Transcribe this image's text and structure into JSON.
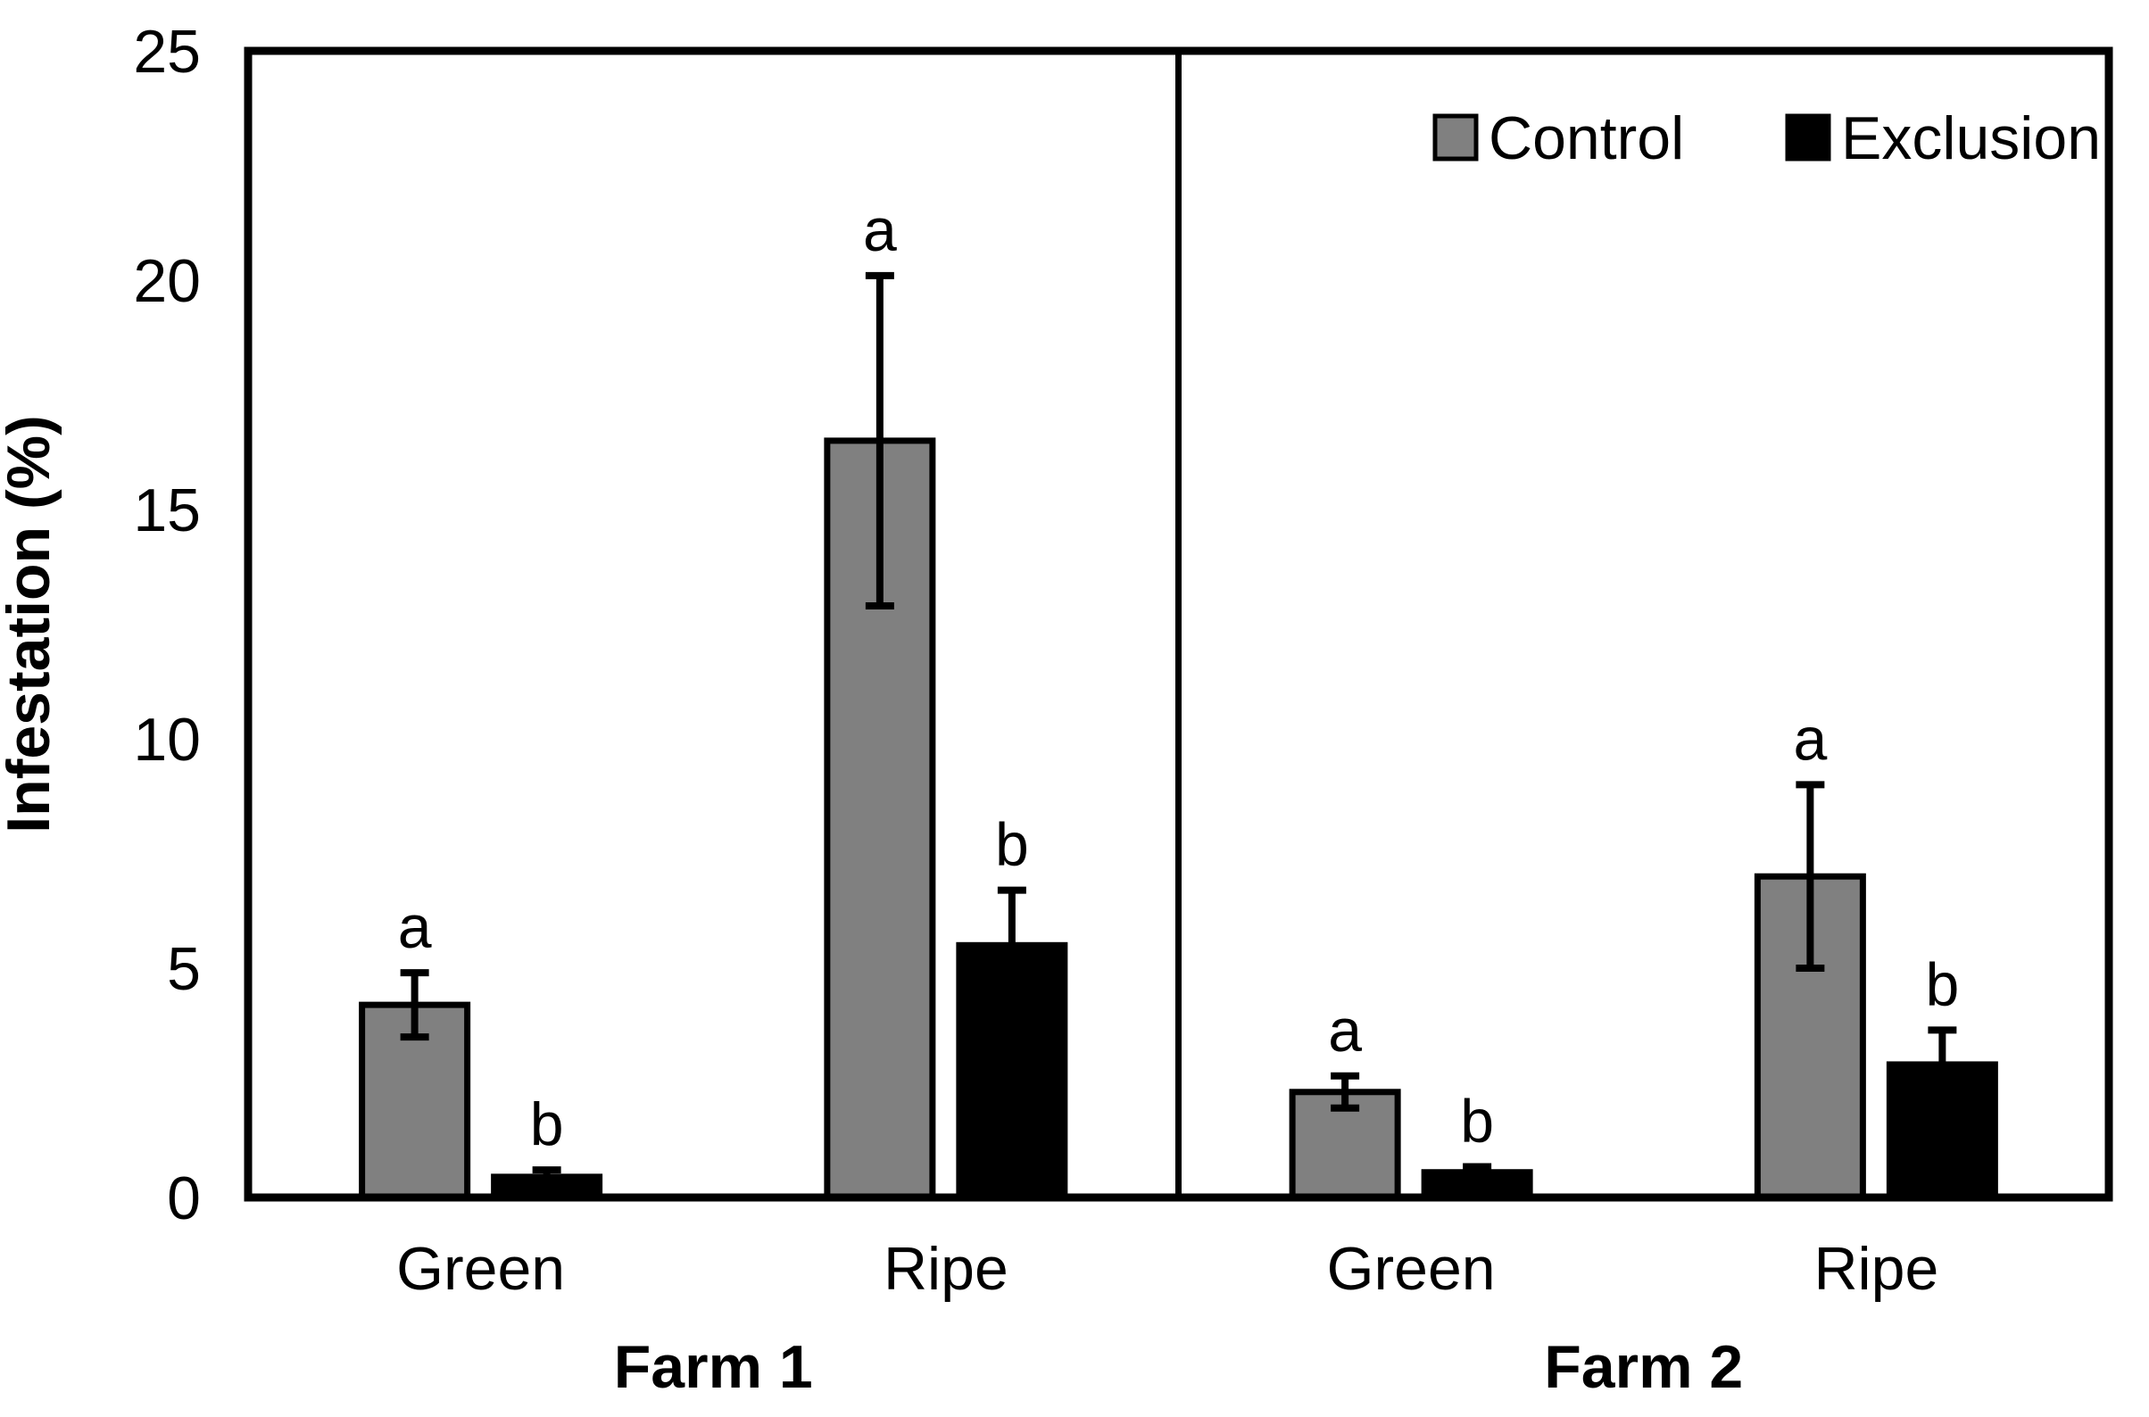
{
  "chart_data": {
    "type": "bar",
    "title": "",
    "xlabel": "",
    "ylabel": "Infestation (%)",
    "ylim": [
      0,
      25
    ],
    "yticks": [
      0,
      5,
      10,
      15,
      20,
      25
    ],
    "grid": false,
    "legend_position": "top-right",
    "colors": {
      "control": "#808080",
      "exclusion": "#000000",
      "axis": "#000000",
      "background": "#ffffff"
    },
    "series": [
      {
        "name": "Control",
        "color": "#808080"
      },
      {
        "name": "Exclusion",
        "color": "#000000"
      }
    ],
    "panels": [
      {
        "label": "Farm 1",
        "groups": [
          {
            "category": "Green",
            "bars": [
              {
                "series": "Control",
                "value": 4.2,
                "error": 0.7,
                "letter": "a"
              },
              {
                "series": "Exclusion",
                "value": 0.45,
                "error": 0.15,
                "letter": "b"
              }
            ]
          },
          {
            "category": "Ripe",
            "bars": [
              {
                "series": "Control",
                "value": 16.5,
                "error": 3.6,
                "letter": "a"
              },
              {
                "series": "Exclusion",
                "value": 5.5,
                "error": 1.2,
                "letter": "b"
              }
            ]
          }
        ]
      },
      {
        "label": "Farm 2",
        "groups": [
          {
            "category": "Green",
            "bars": [
              {
                "series": "Control",
                "value": 2.3,
                "error": 0.35,
                "letter": "a"
              },
              {
                "series": "Exclusion",
                "value": 0.55,
                "error": 0.12,
                "letter": "b"
              }
            ]
          },
          {
            "category": "Ripe",
            "bars": [
              {
                "series": "Control",
                "value": 7.0,
                "error": 2.0,
                "letter": "a"
              },
              {
                "series": "Exclusion",
                "value": 2.9,
                "error": 0.75,
                "letter": "b"
              }
            ]
          }
        ]
      }
    ],
    "legend": {
      "items": [
        {
          "label": "Control",
          "color": "#808080"
        },
        {
          "label": "Exclusion",
          "color": "#000000"
        }
      ]
    }
  }
}
